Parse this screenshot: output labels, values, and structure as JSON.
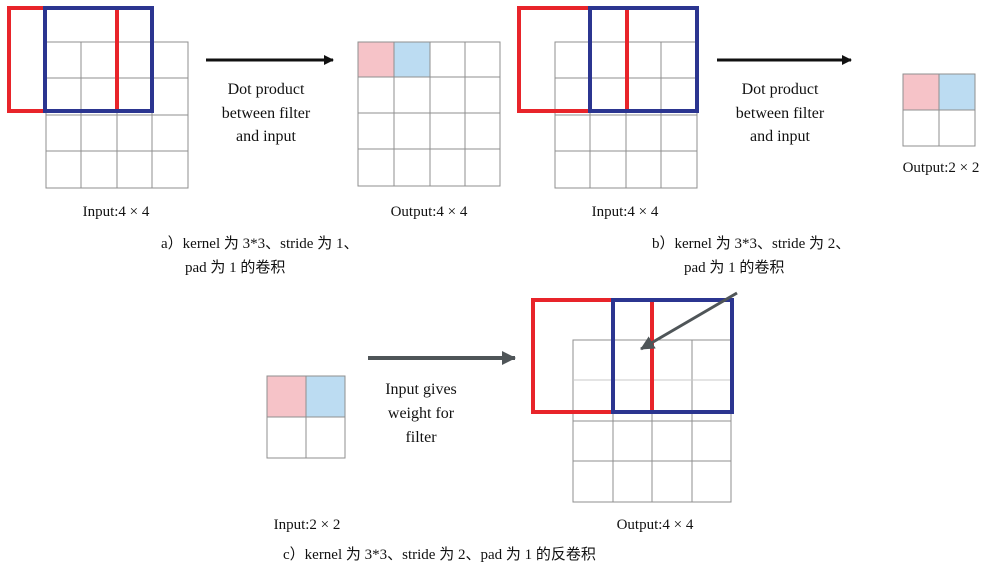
{
  "panel_a": {
    "input_label": "Input:4 × 4",
    "arrow_text": [
      "Dot product",
      "between filter",
      "and input"
    ],
    "output_label": "Output:4 × 4",
    "caption": [
      "a）kernel 为 3*3、stride 为 1、",
      "pad 为 1 的卷积"
    ]
  },
  "panel_b": {
    "input_label": "Input:4 × 4",
    "arrow_text": [
      "Dot product",
      "between filter",
      "and input"
    ],
    "output_label": "Output:2 × 2",
    "caption": [
      "b）kernel 为 3*3、stride 为 2、",
      "pad 为 1 的卷积"
    ]
  },
  "panel_c": {
    "input_label": "Input:2 × 2",
    "arrow_text": [
      "Input gives",
      "weight for",
      "filter"
    ],
    "output_label": "Output:4 × 4",
    "caption": "c）kernel 为 3*3、stride 为 2、pad 为 1 的反卷积"
  },
  "colors": {
    "red_filter": "#e8242a",
    "blue_filter": "#2b3590",
    "pink_cell": "#f6c3c8",
    "light_blue_cell": "#bcdcf2",
    "arrow_black": "#111111",
    "arrow_gray": "#4f5558"
  }
}
